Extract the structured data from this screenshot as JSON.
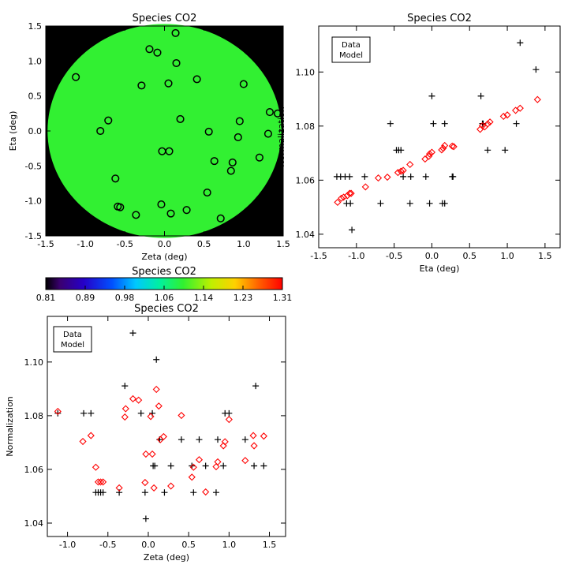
{
  "colors": {
    "data": "#000000",
    "model": "#ff0000",
    "field": "#32f032"
  },
  "colorbar": {
    "title": "Species CO2",
    "ticks": [
      "0.81",
      "0.89",
      "0.98",
      "1.06",
      "1.14",
      "1.23",
      "1.31"
    ],
    "range": [
      0.81,
      1.31
    ],
    "colormap": "rainbow"
  },
  "chart_data": [
    {
      "type": "scatter",
      "title": "Species CO2",
      "xlabel": "Zeta (deg)",
      "ylabel": "Eta (deg)",
      "xlim": [
        -1.5,
        1.5
      ],
      "ylim": [
        -1.5,
        1.5
      ],
      "xticks": [
        "-1.5",
        "-1.0",
        "-0.5",
        "0.0",
        "0.5",
        "1.0",
        "1.5"
      ],
      "yticks": [
        "-1.5",
        "-1.0",
        "-0.5",
        "0.0",
        "0.5",
        "1.0",
        "1.5"
      ],
      "background": "uniform color map (value ~1.06) inside unit field circle, black outside",
      "marker": "circle",
      "points": [
        [
          0.14,
          1.4
        ],
        [
          -0.19,
          1.17
        ],
        [
          -0.09,
          1.12
        ],
        [
          0.15,
          0.97
        ],
        [
          -1.12,
          0.77
        ],
        [
          0.41,
          0.74
        ],
        [
          0.05,
          0.68
        ],
        [
          -0.29,
          0.65
        ],
        [
          1.0,
          0.67
        ],
        [
          -0.71,
          0.15
        ],
        [
          0.2,
          0.17
        ],
        [
          0.95,
          0.14
        ],
        [
          -0.81,
          0.0
        ],
        [
          0.56,
          -0.01
        ],
        [
          0.93,
          -0.09
        ],
        [
          1.33,
          0.27
        ],
        [
          1.43,
          0.25
        ],
        [
          1.31,
          -0.04
        ],
        [
          -0.03,
          -0.29
        ],
        [
          0.06,
          -0.29
        ],
        [
          0.63,
          -0.43
        ],
        [
          1.2,
          -0.38
        ],
        [
          0.86,
          -0.45
        ],
        [
          0.84,
          -0.57
        ],
        [
          -0.62,
          -0.68
        ],
        [
          0.54,
          -0.88
        ],
        [
          -0.59,
          -1.08
        ],
        [
          -0.56,
          -1.09
        ],
        [
          -0.04,
          -1.05
        ],
        [
          0.28,
          -1.13
        ],
        [
          0.08,
          -1.18
        ],
        [
          -0.36,
          -1.2
        ],
        [
          0.71,
          -1.25
        ]
      ]
    },
    {
      "type": "scatter",
      "title": "Species CO2",
      "xlabel": "Eta (deg)",
      "ylabel": "Normalization",
      "xlim": [
        -1.5,
        1.7
      ],
      "ylim": [
        1.035,
        1.117
      ],
      "xticks": [
        -1.5,
        -1.0,
        -0.5,
        0.0,
        0.5,
        1.0,
        1.5
      ],
      "yticks": [
        1.04,
        1.06,
        1.08,
        1.1
      ],
      "legend": {
        "position": "top-left",
        "entries": [
          "Data",
          "Model"
        ]
      },
      "series": [
        {
          "name": "Data",
          "marker": "plus",
          "points": [
            [
              -1.26,
              1.0613
            ],
            [
              -1.21,
              1.0613
            ],
            [
              -1.15,
              1.0613
            ],
            [
              -1.09,
              1.0613
            ],
            [
              -1.13,
              1.0514
            ],
            [
              -1.08,
              1.0514
            ],
            [
              -1.06,
              1.0416
            ],
            [
              -0.89,
              1.0613
            ],
            [
              -0.68,
              1.0514
            ],
            [
              -0.55,
              1.0809
            ],
            [
              -0.47,
              1.0711
            ],
            [
              -0.44,
              1.0711
            ],
            [
              -0.41,
              1.0711
            ],
            [
              -0.38,
              1.0613
            ],
            [
              -0.29,
              1.0514
            ],
            [
              -0.28,
              1.0613
            ],
            [
              -0.08,
              1.0613
            ],
            [
              -0.03,
              1.0514
            ],
            [
              0.0,
              1.0911
            ],
            [
              0.02,
              1.0809
            ],
            [
              0.14,
              1.0514
            ],
            [
              0.17,
              1.0514
            ],
            [
              0.17,
              1.0809
            ],
            [
              0.27,
              1.0613
            ],
            [
              0.28,
              1.0613
            ],
            [
              0.65,
              1.0911
            ],
            [
              0.67,
              1.0809
            ],
            [
              0.68,
              1.0809
            ],
            [
              0.74,
              1.0711
            ],
            [
              0.97,
              1.0711
            ],
            [
              1.12,
              1.0809
            ],
            [
              1.17,
              1.1108
            ],
            [
              1.38,
              1.1009
            ]
          ]
        },
        {
          "name": "Model",
          "marker": "diamond",
          "points": [
            [
              -1.25,
              1.0518
            ],
            [
              -1.2,
              1.0533
            ],
            [
              -1.17,
              1.0537
            ],
            [
              -1.12,
              1.0543
            ],
            [
              -1.09,
              1.0551
            ],
            [
              -1.07,
              1.0551
            ],
            [
              -0.88,
              1.0575
            ],
            [
              -0.71,
              1.0608
            ],
            [
              -0.59,
              1.0611
            ],
            [
              -0.45,
              1.0628
            ],
            [
              -0.41,
              1.0633
            ],
            [
              -0.38,
              1.0636
            ],
            [
              -0.29,
              1.0658
            ],
            [
              -0.09,
              1.0678
            ],
            [
              -0.04,
              1.0688
            ],
            [
              -0.03,
              1.0697
            ],
            [
              0.0,
              1.0703
            ],
            [
              0.13,
              1.0712
            ],
            [
              0.15,
              1.0718
            ],
            [
              0.17,
              1.0728
            ],
            [
              0.27,
              1.0726
            ],
            [
              0.29,
              1.0724
            ],
            [
              0.64,
              1.0788
            ],
            [
              0.67,
              1.0801
            ],
            [
              0.7,
              1.0797
            ],
            [
              0.74,
              1.0808
            ],
            [
              0.77,
              1.0815
            ],
            [
              0.95,
              1.0836
            ],
            [
              1.0,
              1.0841
            ],
            [
              1.11,
              1.0858
            ],
            [
              1.17,
              1.0866
            ],
            [
              1.4,
              1.0898
            ]
          ]
        }
      ]
    },
    {
      "type": "scatter",
      "title": "Species CO2",
      "xlabel": "Zeta (deg)",
      "ylabel": "Normalization",
      "xlim": [
        -1.25,
        1.7
      ],
      "ylim": [
        1.035,
        1.117
      ],
      "xticks": [
        -1.0,
        -0.5,
        0.0,
        0.5,
        1.0,
        1.5
      ],
      "yticks": [
        1.04,
        1.06,
        1.08,
        1.1
      ],
      "legend": {
        "position": "top-left",
        "entries": [
          "Data",
          "Model"
        ]
      },
      "series": [
        {
          "name": "Data",
          "marker": "plus",
          "points": [
            [
              -1.12,
              1.0809
            ],
            [
              -0.8,
              1.0809
            ],
            [
              -0.71,
              1.0809
            ],
            [
              -0.65,
              1.0514
            ],
            [
              -0.62,
              1.0514
            ],
            [
              -0.59,
              1.0514
            ],
            [
              -0.56,
              1.0514
            ],
            [
              -0.36,
              1.0514
            ],
            [
              -0.29,
              1.0911
            ],
            [
              -0.19,
              1.1108
            ],
            [
              -0.09,
              1.0809
            ],
            [
              -0.04,
              1.0514
            ],
            [
              -0.03,
              1.0416
            ],
            [
              0.05,
              1.0809
            ],
            [
              0.06,
              1.0613
            ],
            [
              0.08,
              1.0613
            ],
            [
              0.1,
              1.1009
            ],
            [
              0.14,
              1.0711
            ],
            [
              0.2,
              1.0514
            ],
            [
              0.28,
              1.0613
            ],
            [
              0.41,
              1.0711
            ],
            [
              0.54,
              1.0613
            ],
            [
              0.56,
              1.0514
            ],
            [
              0.63,
              1.0711
            ],
            [
              0.71,
              1.0613
            ],
            [
              0.84,
              1.0514
            ],
            [
              0.86,
              1.0711
            ],
            [
              0.93,
              1.0613
            ],
            [
              0.95,
              1.0809
            ],
            [
              1.0,
              1.0809
            ],
            [
              1.2,
              1.0711
            ],
            [
              1.31,
              1.0613
            ],
            [
              1.33,
              1.0911
            ],
            [
              1.43,
              1.0613
            ]
          ]
        },
        {
          "name": "Model",
          "marker": "diamond",
          "points": [
            [
              -1.12,
              1.0816
            ],
            [
              -0.81,
              1.0704
            ],
            [
              -0.71,
              1.0726
            ],
            [
              -0.65,
              1.0608
            ],
            [
              -0.62,
              1.0553
            ],
            [
              -0.59,
              1.0553
            ],
            [
              -0.56,
              1.0553
            ],
            [
              -0.36,
              1.0531
            ],
            [
              -0.29,
              1.0795
            ],
            [
              -0.28,
              1.0826
            ],
            [
              -0.19,
              1.0863
            ],
            [
              -0.12,
              1.0858
            ],
            [
              -0.04,
              1.0551
            ],
            [
              -0.03,
              1.0657
            ],
            [
              0.03,
              1.0797
            ],
            [
              0.05,
              1.0657
            ],
            [
              0.07,
              1.0531
            ],
            [
              0.1,
              1.0898
            ],
            [
              0.13,
              1.0836
            ],
            [
              0.15,
              1.0711
            ],
            [
              0.19,
              1.0722
            ],
            [
              0.28,
              1.0538
            ],
            [
              0.41,
              1.0801
            ],
            [
              0.54,
              1.0571
            ],
            [
              0.56,
              1.0608
            ],
            [
              0.63,
              1.0636
            ],
            [
              0.71,
              1.0516
            ],
            [
              0.84,
              1.061
            ],
            [
              0.86,
              1.0628
            ],
            [
              0.93,
              1.0688
            ],
            [
              0.95,
              1.0703
            ],
            [
              1.0,
              1.0786
            ],
            [
              1.2,
              1.0633
            ],
            [
              1.3,
              1.0726
            ],
            [
              1.31,
              1.0688
            ],
            [
              1.43,
              1.0724
            ]
          ]
        }
      ]
    }
  ]
}
